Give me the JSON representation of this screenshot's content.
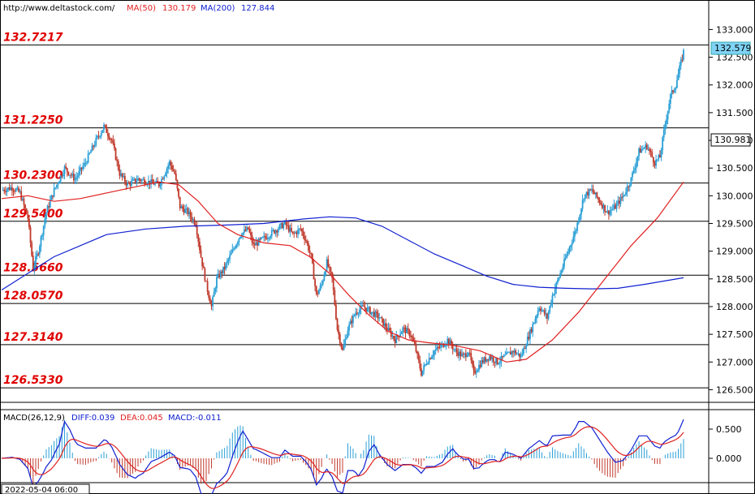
{
  "header": {
    "site": "http://www.deltastock.com/",
    "ma50_label": "MA(50)",
    "ma50_value": "130.179",
    "ma200_label": "MA(200)",
    "ma200_value": "127.844"
  },
  "macd_header": {
    "title": "MACD(26,12,9)",
    "diff": "DIFF:0.039",
    "dea": "DEA:0.045",
    "macd": "MACD:-0.011"
  },
  "date_label": "2022-05-04 06:00",
  "colors": {
    "up": "#2a9fd6",
    "down": "#c0392b",
    "ma50": "#e02020",
    "ma200": "#1020d0",
    "level_text": "#e00000"
  },
  "chart_data": {
    "type": "candlestick",
    "price_axis": {
      "ylim": [
        126.36,
        133.24
      ],
      "ticks": [
        126.5,
        127.0,
        127.5,
        128.0,
        128.5,
        129.0,
        129.5,
        130.0,
        130.5,
        131.0,
        131.5,
        132.0,
        132.5,
        133.0
      ]
    },
    "tick_labels": [
      "126.500",
      "127.000",
      "127.500",
      "128.000",
      "128.500",
      "129.000",
      "129.500",
      "130.000",
      "130.500",
      "131.000",
      "131.500",
      "132.000",
      "132.500",
      "133.000"
    ],
    "current_price": "132.579",
    "marked_price": "130.981",
    "levels": [
      {
        "value": 132.7217,
        "label": "132.7217"
      },
      {
        "value": 131.225,
        "label": "131.2250"
      },
      {
        "value": 130.23,
        "label": "130.2300"
      },
      {
        "value": 129.54,
        "label": "129.5400"
      },
      {
        "value": 128.566,
        "label": "128.5660"
      },
      {
        "value": 128.057,
        "label": "128.0570"
      },
      {
        "value": 127.314,
        "label": "127.3140"
      },
      {
        "value": 126.533,
        "label": "126.5330"
      }
    ],
    "close_path": [
      [
        0,
        130.1
      ],
      [
        8,
        130.15
      ],
      [
        14,
        130.05
      ],
      [
        20,
        129.6
      ],
      [
        24,
        128.7
      ],
      [
        28,
        129.0
      ],
      [
        34,
        129.7
      ],
      [
        40,
        130.1
      ],
      [
        48,
        130.5
      ],
      [
        56,
        130.3
      ],
      [
        64,
        130.6
      ],
      [
        72,
        131.0
      ],
      [
        78,
        131.25
      ],
      [
        84,
        131.0
      ],
      [
        90,
        130.4
      ],
      [
        96,
        130.2
      ],
      [
        104,
        130.3
      ],
      [
        112,
        130.25
      ],
      [
        120,
        130.2
      ],
      [
        128,
        130.6
      ],
      [
        132,
        130.4
      ],
      [
        136,
        129.8
      ],
      [
        142,
        129.7
      ],
      [
        148,
        129.5
      ],
      [
        152,
        128.9
      ],
      [
        156,
        128.4
      ],
      [
        160,
        128.0
      ],
      [
        164,
        128.5
      ],
      [
        170,
        128.7
      ],
      [
        176,
        129.0
      ],
      [
        182,
        129.3
      ],
      [
        188,
        129.4
      ],
      [
        192,
        129.1
      ],
      [
        198,
        129.2
      ],
      [
        204,
        129.3
      ],
      [
        210,
        129.4
      ],
      [
        216,
        129.5
      ],
      [
        222,
        129.3
      ],
      [
        228,
        129.4
      ],
      [
        232,
        129.2
      ],
      [
        236,
        128.9
      ],
      [
        240,
        128.2
      ],
      [
        244,
        128.4
      ],
      [
        248,
        128.8
      ],
      [
        252,
        128.5
      ],
      [
        256,
        127.6
      ],
      [
        260,
        127.2
      ],
      [
        264,
        127.6
      ],
      [
        270,
        127.9
      ],
      [
        276,
        128.0
      ],
      [
        282,
        127.9
      ],
      [
        288,
        127.8
      ],
      [
        294,
        127.6
      ],
      [
        300,
        127.4
      ],
      [
        306,
        127.6
      ],
      [
        312,
        127.5
      ],
      [
        316,
        127.2
      ],
      [
        320,
        126.8
      ],
      [
        324,
        127.0
      ],
      [
        330,
        127.2
      ],
      [
        336,
        127.3
      ],
      [
        340,
        127.4
      ],
      [
        346,
        127.2
      ],
      [
        352,
        127.1
      ],
      [
        356,
        127.2
      ],
      [
        360,
        126.8
      ],
      [
        366,
        127.0
      ],
      [
        372,
        127.1
      ],
      [
        378,
        127.0
      ],
      [
        384,
        127.1
      ],
      [
        390,
        127.2
      ],
      [
        396,
        127.1
      ],
      [
        404,
        127.6
      ],
      [
        410,
        128.0
      ],
      [
        416,
        127.8
      ],
      [
        420,
        128.2
      ],
      [
        426,
        128.6
      ],
      [
        432,
        129.0
      ],
      [
        438,
        129.4
      ],
      [
        444,
        130.0
      ],
      [
        450,
        130.1
      ],
      [
        456,
        129.9
      ],
      [
        462,
        129.7
      ],
      [
        468,
        129.8
      ],
      [
        474,
        130.0
      ],
      [
        480,
        130.3
      ],
      [
        486,
        130.8
      ],
      [
        492,
        130.9
      ],
      [
        498,
        130.6
      ],
      [
        502,
        130.7
      ],
      [
        506,
        131.3
      ],
      [
        510,
        131.8
      ],
      [
        514,
        132.0
      ],
      [
        518,
        132.4
      ],
      [
        520,
        132.6
      ]
    ],
    "ma50": [
      [
        0,
        129.95
      ],
      [
        20,
        130.0
      ],
      [
        40,
        129.9
      ],
      [
        60,
        129.95
      ],
      [
        80,
        130.05
      ],
      [
        100,
        130.15
      ],
      [
        120,
        130.25
      ],
      [
        135,
        130.2
      ],
      [
        150,
        129.9
      ],
      [
        165,
        129.5
      ],
      [
        180,
        129.3
      ],
      [
        200,
        129.15
      ],
      [
        220,
        129.1
      ],
      [
        235,
        128.9
      ],
      [
        250,
        128.6
      ],
      [
        265,
        128.2
      ],
      [
        280,
        127.85
      ],
      [
        295,
        127.55
      ],
      [
        310,
        127.4
      ],
      [
        325,
        127.35
      ],
      [
        345,
        127.3
      ],
      [
        365,
        127.2
      ],
      [
        385,
        127.0
      ],
      [
        400,
        127.05
      ],
      [
        420,
        127.4
      ],
      [
        440,
        127.9
      ],
      [
        460,
        128.5
      ],
      [
        480,
        129.1
      ],
      [
        500,
        129.6
      ],
      [
        520,
        130.25
      ]
    ],
    "ma200": [
      [
        0,
        128.3
      ],
      [
        40,
        128.9
      ],
      [
        80,
        129.3
      ],
      [
        110,
        129.4
      ],
      [
        140,
        129.45
      ],
      [
        170,
        129.47
      ],
      [
        200,
        129.5
      ],
      [
        230,
        129.58
      ],
      [
        250,
        129.62
      ],
      [
        270,
        129.6
      ],
      [
        290,
        129.45
      ],
      [
        310,
        129.2
      ],
      [
        330,
        128.95
      ],
      [
        350,
        128.75
      ],
      [
        370,
        128.55
      ],
      [
        390,
        128.4
      ],
      [
        410,
        128.35
      ],
      [
        430,
        128.33
      ],
      [
        450,
        128.32
      ],
      [
        470,
        128.33
      ],
      [
        490,
        128.4
      ],
      [
        520,
        128.52
      ]
    ]
  },
  "macd_axis": {
    "ticks": [
      "0.500",
      "0.000"
    ]
  }
}
